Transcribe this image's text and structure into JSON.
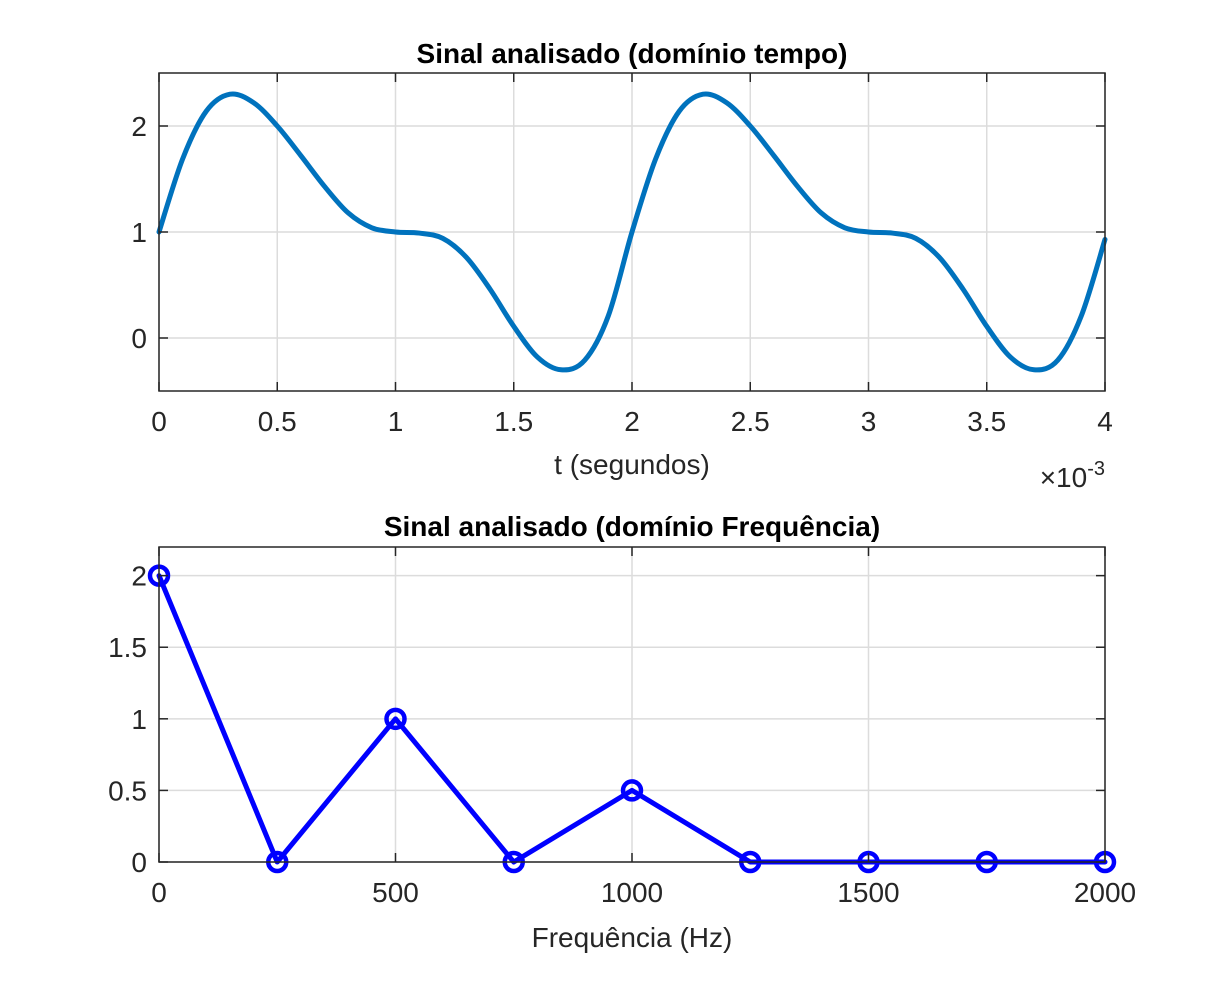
{
  "chart_data": [
    {
      "type": "line",
      "title": "Sinal analisado (domínio tempo)",
      "xlabel": "t (segundos)",
      "ylabel": "",
      "x_exponent_label": "×10",
      "x_exponent": "-3",
      "xlim": [
        0,
        0.004
      ],
      "ylim": [
        -0.5,
        2.5
      ],
      "xticks": [
        0,
        0.0005,
        0.001,
        0.0015,
        0.002,
        0.0025,
        0.003,
        0.0035,
        0.004
      ],
      "xtick_labels": [
        "0",
        "0.5",
        "1",
        "1.5",
        "2",
        "2.5",
        "3",
        "3.5",
        "4"
      ],
      "yticks": [
        0,
        1,
        2
      ],
      "ytick_labels": [
        "0",
        "1",
        "2"
      ],
      "grid": true,
      "line_color": "#0072BD",
      "series": [
        {
          "x": [
            0,
            0.0001,
            0.0002,
            0.0003,
            0.0004,
            0.0005,
            0.0006,
            0.0007,
            0.0008,
            0.0009,
            0.001,
            0.0011,
            0.0012,
            0.0013,
            0.0014,
            0.0015,
            0.0016,
            0.0017,
            0.0018,
            0.0019,
            0.002,
            0.0021,
            0.0022,
            0.0023,
            0.0024,
            0.0025,
            0.0026,
            0.0027,
            0.0028,
            0.0029,
            0.003,
            0.0031,
            0.0032,
            0.0033,
            0.0034,
            0.0035,
            0.0036,
            0.0037,
            0.0038,
            0.0039,
            0.004
          ],
          "values": [
            1.0,
            1.69,
            2.14,
            2.3,
            2.22,
            2.0,
            1.72,
            1.43,
            1.18,
            1.04,
            1.0,
            0.99,
            0.94,
            0.76,
            0.46,
            0.11,
            -0.18,
            -0.3,
            -0.21,
            0.21,
            1.0,
            1.69,
            2.14,
            2.3,
            2.22,
            2.0,
            1.72,
            1.43,
            1.18,
            1.04,
            1.0,
            0.99,
            0.94,
            0.76,
            0.46,
            0.11,
            -0.18,
            -0.3,
            -0.21,
            0.21,
            0.93
          ]
        }
      ]
    },
    {
      "type": "line",
      "title": "Sinal analisado (domínio Frequência)",
      "xlabel": "Frequência (Hz)",
      "ylabel": "",
      "xlim": [
        0,
        2000
      ],
      "ylim": [
        0,
        2.2
      ],
      "xticks": [
        0,
        500,
        1000,
        1500,
        2000
      ],
      "xtick_labels": [
        "0",
        "500",
        "1000",
        "1500",
        "2000"
      ],
      "yticks": [
        0,
        0.5,
        1,
        1.5,
        2
      ],
      "ytick_labels": [
        "0",
        "0.5",
        "1",
        "1.5",
        "2"
      ],
      "grid": true,
      "line_color": "#0000FF",
      "marker": "circle",
      "series": [
        {
          "x": [
            0,
            250,
            500,
            750,
            1000,
            1250,
            1500,
            1750,
            2000
          ],
          "values": [
            2,
            0,
            1,
            0,
            0.5,
            0,
            0,
            0,
            0
          ]
        }
      ]
    }
  ]
}
